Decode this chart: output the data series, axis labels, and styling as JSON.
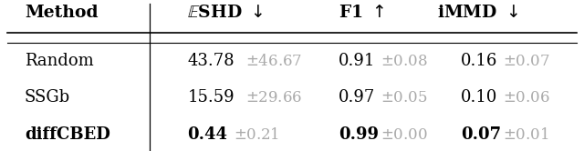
{
  "rows": [
    [
      "Random",
      "43.78",
      "46.67",
      "0.91",
      "0.08",
      "0.16",
      "0.07"
    ],
    [
      "SSGb",
      "15.59",
      "29.66",
      "0.97",
      "0.05",
      "0.10",
      "0.06"
    ],
    [
      "diffCBED",
      "0.44",
      "0.21",
      "0.99",
      "0.00",
      "0.07",
      "0.01"
    ]
  ],
  "method_bold": [
    false,
    false,
    true
  ],
  "header_color": "#000000",
  "main_color": "#000000",
  "std_color": "#aaaaaa",
  "bg_color": "#ffffff",
  "figsize": [
    6.4,
    1.66
  ],
  "dpi": 100,
  "header_fs": 13.5,
  "data_fs": 13.0
}
